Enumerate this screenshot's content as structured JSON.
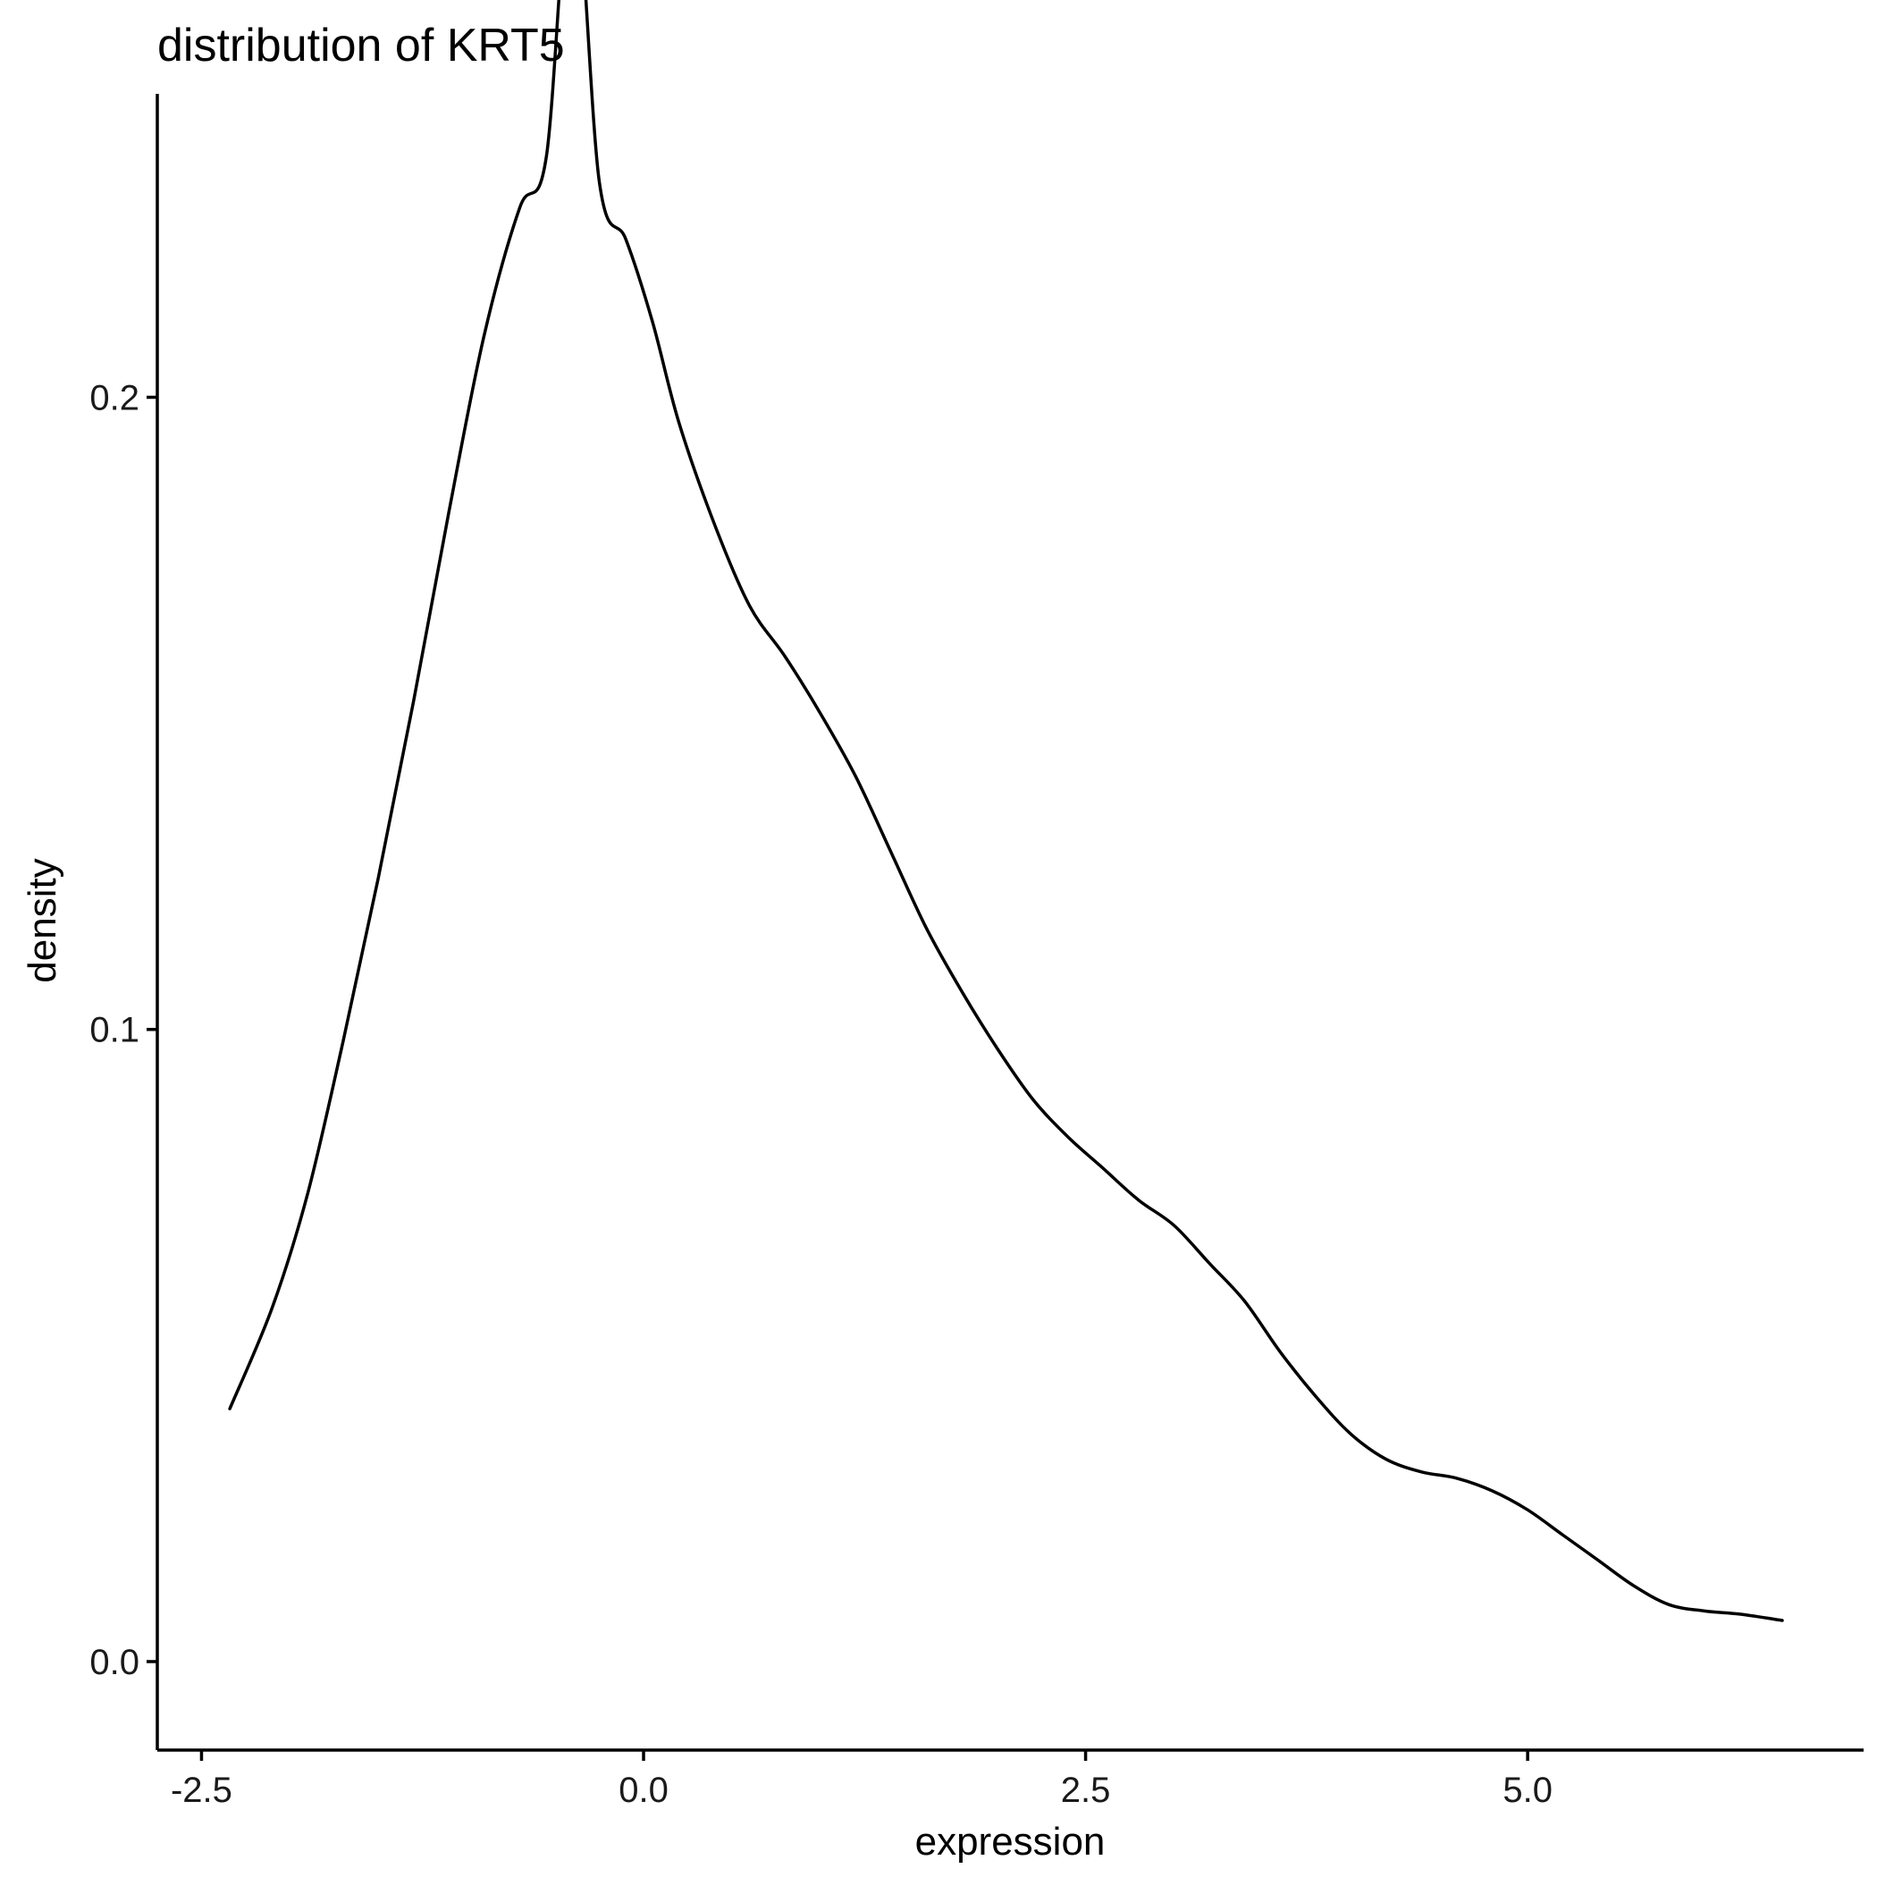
{
  "chart_data": {
    "type": "line",
    "title": "distribution of KRT5",
    "xlabel": "expression",
    "ylabel": "density",
    "xlim": [
      -2.75,
      6.9
    ],
    "ylim": [
      -0.014,
      0.248
    ],
    "x_ticks": [
      -2.5,
      0.0,
      2.5,
      5.0
    ],
    "x_tick_labels": [
      "-2.5",
      "0.0",
      "2.5",
      "5.0"
    ],
    "y_ticks": [
      0.0,
      0.1,
      0.2
    ],
    "y_tick_labels": [
      "0.0",
      "0.1",
      "0.2"
    ],
    "grid": false,
    "legend": "none",
    "series": [
      {
        "color": "#000000",
        "x": [
          -2.34,
          -2.1,
          -1.9,
          -1.7,
          -1.5,
          -1.3,
          -1.1,
          -0.9,
          -0.7,
          -0.55,
          -0.4,
          -0.25,
          -0.1,
          0.05,
          0.2,
          0.4,
          0.6,
          0.8,
          1.0,
          1.2,
          1.4,
          1.6,
          1.8,
          2.0,
          2.2,
          2.4,
          2.6,
          2.8,
          3.0,
          3.2,
          3.4,
          3.6,
          3.8,
          4.0,
          4.2,
          4.4,
          4.6,
          4.8,
          5.0,
          5.2,
          5.4,
          5.6,
          5.8,
          6.0,
          6.2,
          6.44
        ],
        "y": [
          0.04,
          0.056,
          0.074,
          0.098,
          0.124,
          0.152,
          0.182,
          0.21,
          0.23,
          0.238,
          0.284,
          0.234,
          0.225,
          0.212,
          0.196,
          0.18,
          0.167,
          0.159,
          0.15,
          0.14,
          0.128,
          0.116,
          0.106,
          0.097,
          0.089,
          0.083,
          0.078,
          0.073,
          0.069,
          0.063,
          0.057,
          0.049,
          0.042,
          0.036,
          0.032,
          0.03,
          0.029,
          0.027,
          0.024,
          0.02,
          0.016,
          0.012,
          0.009,
          0.008,
          0.0075,
          0.0065
        ]
      }
    ]
  }
}
